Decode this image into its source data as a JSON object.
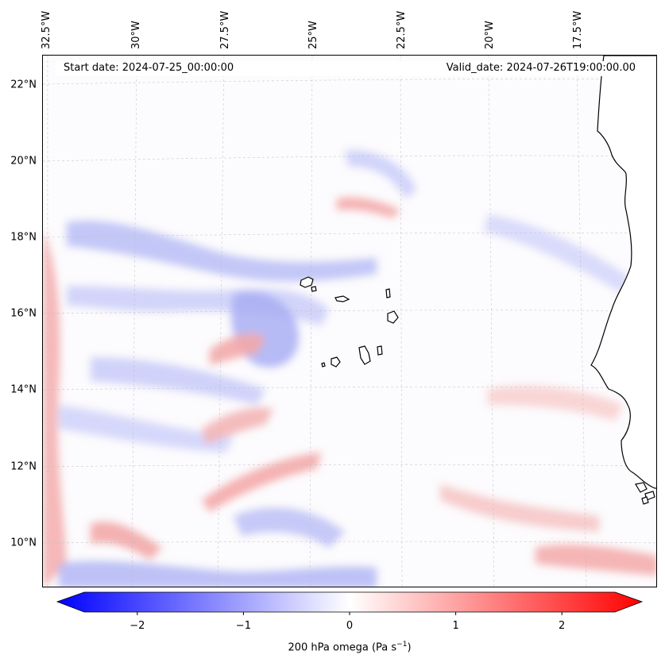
{
  "map": {
    "start_date": "Start date: 2024-07-25_00:00:00",
    "valid_date": "Valid_date: 2024-07-26T19:00:00.00",
    "lon_ticks": [
      "32.5°W",
      "30°W",
      "27.5°W",
      "25°W",
      "22.5°W",
      "20°W",
      "17.5°W"
    ],
    "lat_ticks": [
      "22°N",
      "20°N",
      "18°N",
      "16°N",
      "14°N",
      "12°N",
      "10°N"
    ],
    "field": "200 hPa vertical velocity (omega), Cape Verde region",
    "features": [
      "Cape Verde islands",
      "West African coastline (Senegal, Gambia, Guinea-Bissau)"
    ]
  },
  "colorbar": {
    "label": "200 hPa omega (Pa s",
    "label_exponent": "−1",
    "label_close": ")",
    "ticks": [
      "−2",
      "−1",
      "0",
      "1",
      "2"
    ],
    "tick_values": [
      -2,
      -1,
      0,
      1,
      2
    ],
    "range": [
      -2.5,
      2.5
    ],
    "colormap": "bwr",
    "low_color": "#0000ff",
    "mid_color": "#ffffff",
    "high_color": "#ff0000"
  }
}
